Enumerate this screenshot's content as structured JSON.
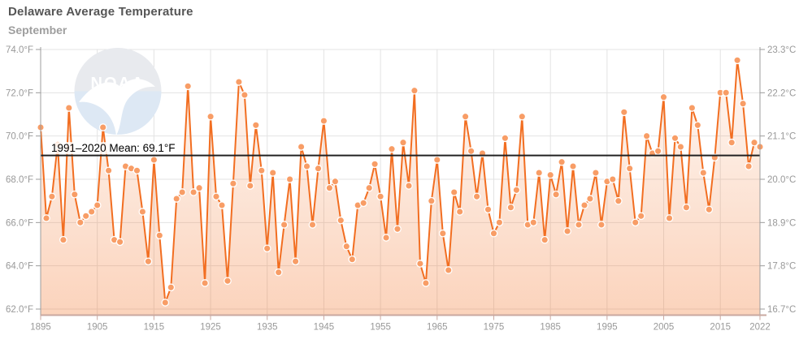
{
  "header": {
    "title": "Delaware Average Temperature",
    "subtitle": "September"
  },
  "chart_data": {
    "type": "line",
    "title": "Delaware Average Temperature",
    "subtitle": "September",
    "series_name": "Average September Temperature",
    "years": [
      1895,
      1896,
      1897,
      1898,
      1899,
      1900,
      1901,
      1902,
      1903,
      1904,
      1905,
      1906,
      1907,
      1908,
      1909,
      1910,
      1911,
      1912,
      1913,
      1914,
      1915,
      1916,
      1917,
      1918,
      1919,
      1920,
      1921,
      1922,
      1923,
      1924,
      1925,
      1926,
      1927,
      1928,
      1929,
      1930,
      1931,
      1932,
      1933,
      1934,
      1935,
      1936,
      1937,
      1938,
      1939,
      1940,
      1941,
      1942,
      1943,
      1944,
      1945,
      1946,
      1947,
      1948,
      1949,
      1950,
      1951,
      1952,
      1953,
      1954,
      1955,
      1956,
      1957,
      1958,
      1959,
      1960,
      1961,
      1962,
      1963,
      1964,
      1965,
      1966,
      1967,
      1968,
      1969,
      1970,
      1971,
      1972,
      1973,
      1974,
      1975,
      1976,
      1977,
      1978,
      1979,
      1980,
      1981,
      1982,
      1983,
      1984,
      1985,
      1986,
      1987,
      1988,
      1989,
      1990,
      1991,
      1992,
      1993,
      1994,
      1995,
      1996,
      1997,
      1998,
      1999,
      2000,
      2001,
      2002,
      2003,
      2004,
      2005,
      2006,
      2007,
      2008,
      2009,
      2010,
      2011,
      2012,
      2013,
      2014,
      2015,
      2016,
      2017,
      2018,
      2019,
      2020,
      2021,
      2022
    ],
    "values_f": [
      70.4,
      66.2,
      67.2,
      69.6,
      65.2,
      71.3,
      67.3,
      66.0,
      66.3,
      66.5,
      66.8,
      70.4,
      68.4,
      65.2,
      65.1,
      68.6,
      68.5,
      68.4,
      66.5,
      64.2,
      68.9,
      65.4,
      62.3,
      63.0,
      67.1,
      67.4,
      72.3,
      67.4,
      67.6,
      63.2,
      70.9,
      67.2,
      66.8,
      63.3,
      67.8,
      72.5,
      71.9,
      67.7,
      70.5,
      68.4,
      64.8,
      68.3,
      63.7,
      65.9,
      68.0,
      64.2,
      69.5,
      68.6,
      65.9,
      68.5,
      70.7,
      67.6,
      67.9,
      66.1,
      64.9,
      64.3,
      66.8,
      66.9,
      67.6,
      68.7,
      67.2,
      65.3,
      69.4,
      65.7,
      69.7,
      67.7,
      72.1,
      64.1,
      63.2,
      67.0,
      68.9,
      65.5,
      63.8,
      67.4,
      66.5,
      70.9,
      69.3,
      67.2,
      69.2,
      66.6,
      65.5,
      66.0,
      69.9,
      66.7,
      67.5,
      70.9,
      65.9,
      66.0,
      68.3,
      65.2,
      68.2,
      67.3,
      68.8,
      65.6,
      68.6,
      65.9,
      66.8,
      67.1,
      68.3,
      65.9,
      67.9,
      68.0,
      67.0,
      71.1,
      68.5,
      66.0,
      66.3,
      70.0,
      69.2,
      69.3,
      71.8,
      66.2,
      69.9,
      69.5,
      66.7,
      71.3,
      70.5,
      68.3,
      66.6,
      69.0,
      72.0,
      72.0,
      69.7,
      73.5,
      71.5,
      68.6,
      69.7,
      69.5
    ],
    "ylim_f": [
      62.0,
      74.0
    ],
    "yticks_f": [
      "74.0°F",
      "72.0°F",
      "70.0°F",
      "68.0°F",
      "66.0°F",
      "64.0°F",
      "62.0°F"
    ],
    "yticks_c": [
      "23.3°C",
      "22.2°C",
      "21.1°C",
      "20.0°C",
      "18.9°C",
      "17.8°C",
      "16.7°C"
    ],
    "ytick_values_f": [
      74,
      72,
      70,
      68,
      66,
      64,
      62
    ],
    "xticks": [
      "1895",
      "1905",
      "1915",
      "1925",
      "1935",
      "1945",
      "1955",
      "1965",
      "1975",
      "1985",
      "1995",
      "2005",
      "2015",
      "2022"
    ],
    "xtick_years": [
      1895,
      1905,
      1915,
      1925,
      1935,
      1945,
      1955,
      1965,
      1975,
      1985,
      1995,
      2005,
      2015,
      2022
    ],
    "mean_line": {
      "label": "1991–2020 Mean: 69.1°F",
      "value_f": 69.1
    },
    "grid": true,
    "legend_position": "none",
    "colors": {
      "line": "#f26e21",
      "marker_fill": "#f89d66",
      "marker_stroke": "#ffffff",
      "mean_line": "#222222",
      "grid": "#e3e3e3",
      "axis_side": "#9c9c9c",
      "axis_bottom": "#c9a8a0",
      "tick_label": "#999999",
      "area_top": "rgba(242,110,33,0.05)",
      "area_bottom": "rgba(242,110,33,0.30)"
    }
  },
  "watermark": {
    "name": "noaa-logo",
    "text": "NOAA"
  }
}
